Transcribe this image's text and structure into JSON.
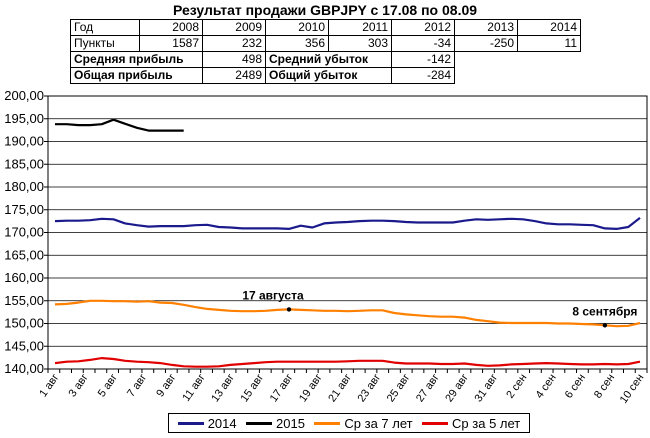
{
  "title": "Результат продажи GBPJPY с 17.08 по 08.09",
  "stats_table": {
    "year_label": "Год",
    "points_label": "Пункты",
    "years": [
      "2008",
      "2009",
      "2010",
      "2011",
      "2012",
      "2013",
      "2014"
    ],
    "points": [
      "1587",
      "232",
      "356",
      "303",
      "-34",
      "-250",
      "11"
    ],
    "avg_profit_label": "Средняя прибыль",
    "avg_profit_value": "498",
    "avg_loss_label": "Средний убыток",
    "avg_loss_value": "-142",
    "total_profit_label": "Общая прибыль",
    "total_profit_value": "2489",
    "total_loss_label": "Общий убыток",
    "total_loss_value": "-284"
  },
  "chart_data": {
    "type": "line",
    "title": "Результат продажи GBPJPY с 17.08 по 08.09",
    "xlabel": "",
    "ylabel": "",
    "ylim": [
      140,
      200
    ],
    "y_ticks": [
      "140,00",
      "145,00",
      "150,00",
      "155,00",
      "160,00",
      "165,00",
      "170,00",
      "175,00",
      "180,00",
      "185,00",
      "190,00",
      "195,00",
      "200,00"
    ],
    "x_tick_labels": [
      "1 авг",
      "3 авг",
      "5 авг",
      "7 авг",
      "9 авг",
      "11 авг",
      "13 авг",
      "15 авг",
      "17 авг",
      "19 авг",
      "21 авг",
      "23 авг",
      "25 авг",
      "27 авг",
      "29 авг",
      "31 авг",
      "2 сен",
      "4 сен",
      "6 сен",
      "8 сен",
      "10 сен"
    ],
    "grid": true,
    "legend_position": "bottom",
    "series": [
      {
        "name": "2014",
        "color": "#1a1a8c",
        "values": [
          172.5,
          172.6,
          172.6,
          172.7,
          173.0,
          172.9,
          172.0,
          171.6,
          171.3,
          171.4,
          171.4,
          171.4,
          171.6,
          171.7,
          171.2,
          171.1,
          170.9,
          170.9,
          170.9,
          170.9,
          170.8,
          171.5,
          171.1,
          172.0,
          172.2,
          172.3,
          172.5,
          172.6,
          172.6,
          172.5,
          172.3,
          172.2,
          172.2,
          172.2,
          172.2,
          172.6,
          172.9,
          172.8,
          172.9,
          173.0,
          172.9,
          172.5,
          172.0,
          171.8,
          171.8,
          171.7,
          171.6,
          170.9,
          170.8,
          171.2,
          173.2
        ]
      },
      {
        "name": "2015",
        "color": "#000000",
        "values": [
          193.8,
          193.8,
          193.6,
          193.6,
          193.8,
          194.8,
          193.9,
          193.0,
          192.4,
          192.4,
          192.4,
          192.4
        ]
      },
      {
        "name": "Ср за 7 лет",
        "color": "#ff8000",
        "values": [
          154.2,
          154.3,
          154.6,
          155.0,
          155.0,
          154.9,
          154.9,
          154.8,
          154.9,
          154.6,
          154.5,
          154.1,
          153.6,
          153.2,
          153.0,
          152.8,
          152.7,
          152.7,
          152.8,
          153.0,
          153.1,
          153.0,
          152.9,
          152.8,
          152.8,
          152.7,
          152.8,
          152.9,
          152.9,
          152.3,
          152.0,
          151.8,
          151.6,
          151.5,
          151.5,
          151.3,
          150.8,
          150.5,
          150.2,
          150.1,
          150.1,
          150.1,
          150.1,
          150.0,
          150.0,
          149.9,
          149.8,
          149.6,
          149.4,
          149.5,
          150.1
        ]
      },
      {
        "name": "Ср за 5 лет",
        "color": "#e00000",
        "values": [
          141.3,
          141.6,
          141.7,
          142.0,
          142.4,
          142.2,
          141.8,
          141.6,
          141.5,
          141.3,
          140.9,
          140.6,
          140.5,
          140.5,
          140.6,
          140.9,
          141.1,
          141.3,
          141.5,
          141.6,
          141.6,
          141.6,
          141.6,
          141.6,
          141.6,
          141.7,
          141.8,
          141.8,
          141.8,
          141.4,
          141.2,
          141.2,
          141.2,
          141.1,
          141.1,
          141.2,
          140.9,
          140.7,
          140.8,
          141.0,
          141.1,
          141.2,
          141.3,
          141.2,
          141.1,
          141.0,
          141.0,
          141.1,
          141.0,
          141.1,
          141.6
        ]
      }
    ],
    "annotations": [
      {
        "text": "17 августа",
        "series": "Ср за 7 лет",
        "index": 20
      },
      {
        "text": "8 сентября",
        "series": "Ср за 7 лет",
        "index": 47
      }
    ]
  }
}
